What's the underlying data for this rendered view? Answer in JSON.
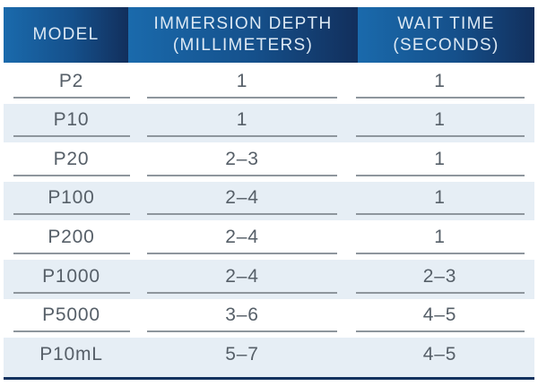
{
  "table": {
    "title": "pipette-immersion-table",
    "columns": [
      {
        "id": "model",
        "line1": "MODEL",
        "line2": ""
      },
      {
        "id": "immersion_depth",
        "line1": "IMMERSION DEPTH",
        "line2": "(MILLIMETERS)"
      },
      {
        "id": "wait_time",
        "line1": "WAIT TIME",
        "line2": "(SECONDS)"
      }
    ],
    "rows": [
      {
        "model": "P2",
        "immersion_depth_mm": "1",
        "wait_time_s": "1"
      },
      {
        "model": "P10",
        "immersion_depth_mm": "1",
        "wait_time_s": "1"
      },
      {
        "model": "P20",
        "immersion_depth_mm": "2–3",
        "wait_time_s": "1"
      },
      {
        "model": "P100",
        "immersion_depth_mm": "2–4",
        "wait_time_s": "1"
      },
      {
        "model": "P200",
        "immersion_depth_mm": "2–4",
        "wait_time_s": "1"
      },
      {
        "model": "P1000",
        "immersion_depth_mm": "2–4",
        "wait_time_s": "2–3"
      },
      {
        "model": "P5000",
        "immersion_depth_mm": "3–6",
        "wait_time_s": "4–5"
      },
      {
        "model": "P10mL",
        "immersion_depth_mm": "5–7",
        "wait_time_s": "4–5"
      }
    ]
  },
  "colors": {
    "header_gradient_start": "#1a6aac",
    "header_gradient_end": "#122f5c",
    "header_text": "#dde9f4",
    "row_stripe": "#e6eef5",
    "body_text": "#565f68",
    "cell_underline": "#8e969d",
    "bottom_rule": "#13325f"
  }
}
